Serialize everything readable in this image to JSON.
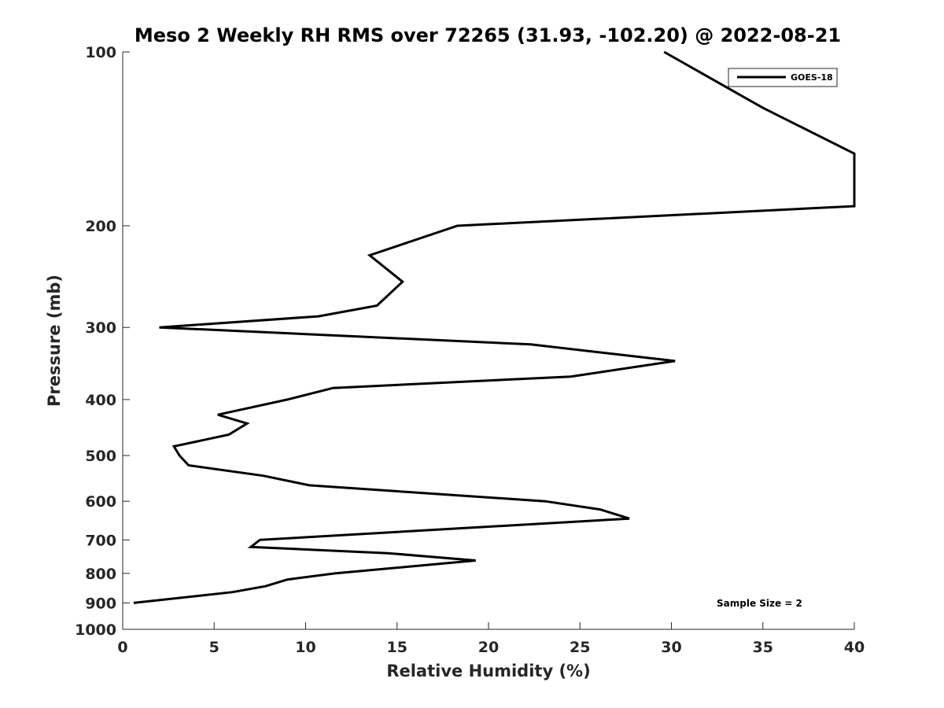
{
  "chart_data": {
    "type": "line",
    "title": "Meso 2 Weekly RH RMS over 72265 (31.93, -102.20) @ 2022-08-21",
    "xlabel": "Relative Humidity (%)",
    "ylabel": "Pressure (mb)",
    "xlim": [
      0,
      40
    ],
    "ylim": [
      100,
      1000
    ],
    "y_scale": "log",
    "y_reversed": true,
    "xticks": [
      0,
      5,
      10,
      15,
      20,
      25,
      30,
      35,
      40
    ],
    "yticks": [
      100,
      200,
      300,
      400,
      500,
      600,
      700,
      800,
      900,
      1000
    ],
    "grid": false,
    "legend_position": "top-right",
    "series": [
      {
        "name": "GOES-18",
        "color": "#000000",
        "points": [
          [
            29.6,
            100
          ],
          [
            35.0,
            125
          ],
          [
            40.0,
            150
          ],
          [
            40.0,
            185
          ],
          [
            18.3,
            200
          ],
          [
            13.5,
            225
          ],
          [
            15.3,
            250
          ],
          [
            13.9,
            275
          ],
          [
            10.7,
            287
          ],
          [
            2.0,
            300
          ],
          [
            22.3,
            321
          ],
          [
            30.2,
            343
          ],
          [
            24.5,
            365
          ],
          [
            11.5,
            382
          ],
          [
            9.0,
            400
          ],
          [
            5.2,
            425
          ],
          [
            6.8,
            440
          ],
          [
            5.8,
            460
          ],
          [
            2.8,
            482
          ],
          [
            3.1,
            500
          ],
          [
            3.6,
            520
          ],
          [
            7.7,
            542
          ],
          [
            10.2,
            563
          ],
          [
            16.2,
            580
          ],
          [
            23.1,
            600
          ],
          [
            26.1,
            620
          ],
          [
            27.7,
            643
          ],
          [
            7.5,
            700
          ],
          [
            7.0,
            720
          ],
          [
            14.5,
            738
          ],
          [
            19.3,
            760
          ],
          [
            11.6,
            800
          ],
          [
            9.0,
            820
          ],
          [
            7.8,
            842
          ],
          [
            6.0,
            862
          ],
          [
            0.6,
            900
          ]
        ]
      }
    ],
    "annotations": [
      "Sample Size = 2"
    ]
  }
}
